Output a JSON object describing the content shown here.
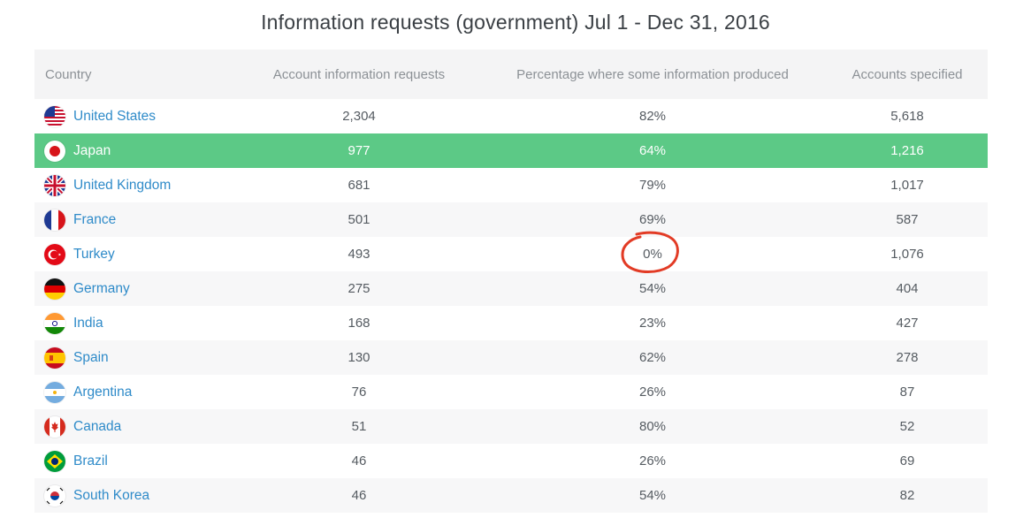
{
  "title": "Information requests (government) Jul 1 - Dec 31, 2016",
  "headers": {
    "country": "Country",
    "requests": "Account information requests",
    "percentage": "Percentage where some information produced",
    "accounts": "Accounts specified"
  },
  "rows": [
    {
      "country": "United States",
      "flag": "us-flag-icon",
      "requests": "2,304",
      "percentage": "82%",
      "accounts": "5,618"
    },
    {
      "country": "Japan",
      "flag": "japan-flag-icon",
      "requests": "977",
      "percentage": "64%",
      "accounts": "1,216"
    },
    {
      "country": "United Kingdom",
      "flag": "uk-flag-icon",
      "requests": "681",
      "percentage": "79%",
      "accounts": "1,017"
    },
    {
      "country": "France",
      "flag": "france-flag-icon",
      "requests": "501",
      "percentage": "69%",
      "accounts": "587"
    },
    {
      "country": "Turkey",
      "flag": "turkey-flag-icon",
      "requests": "493",
      "percentage": "0%",
      "accounts": "1,076"
    },
    {
      "country": "Germany",
      "flag": "germany-flag-icon",
      "requests": "275",
      "percentage": "54%",
      "accounts": "404"
    },
    {
      "country": "India",
      "flag": "india-flag-icon",
      "requests": "168",
      "percentage": "23%",
      "accounts": "427"
    },
    {
      "country": "Spain",
      "flag": "spain-flag-icon",
      "requests": "130",
      "percentage": "62%",
      "accounts": "278"
    },
    {
      "country": "Argentina",
      "flag": "argentina-flag-icon",
      "requests": "76",
      "percentage": "26%",
      "accounts": "87"
    },
    {
      "country": "Canada",
      "flag": "canada-flag-icon",
      "requests": "51",
      "percentage": "80%",
      "accounts": "52"
    },
    {
      "country": "Brazil",
      "flag": "brazil-flag-icon",
      "requests": "46",
      "percentage": "26%",
      "accounts": "69"
    },
    {
      "country": "South Korea",
      "flag": "south-korea-flag-icon",
      "requests": "46",
      "percentage": "54%",
      "accounts": "82"
    }
  ],
  "colors": {
    "highlight_row": "#5cc986",
    "link": "#2f8bc9",
    "annotation_circle": "#e23b25"
  }
}
